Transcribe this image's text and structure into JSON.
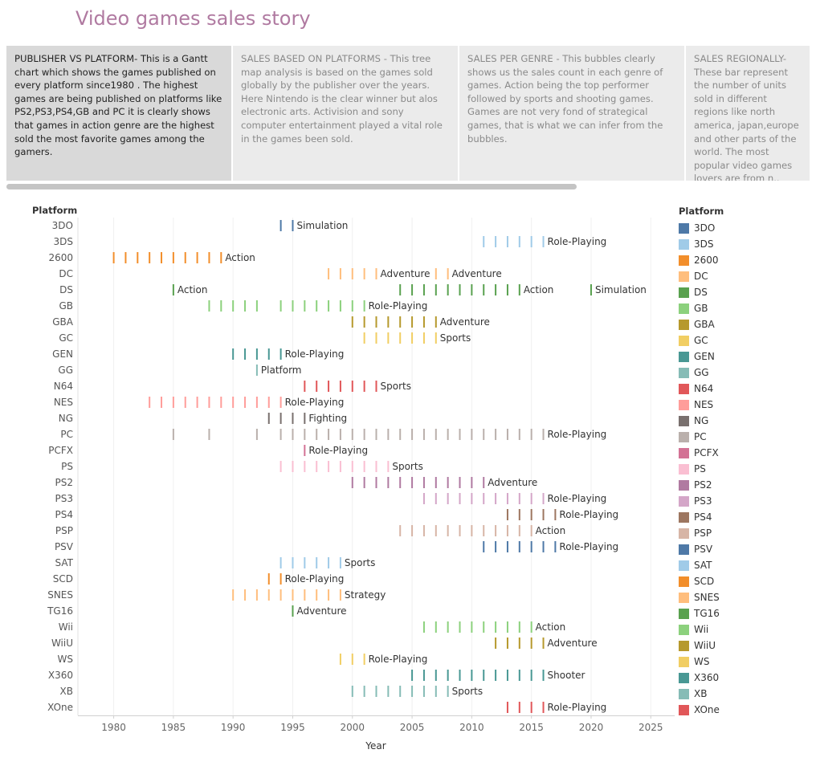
{
  "story_title": "Video games sales story",
  "story_points": [
    {
      "text": "PUBLISHER VS PLATFORM- This is a Gantt chart which  shows the games  published on every platform since1980 . The highest games are being published on platforms like PS2,PS3,PS4,GB and PC it is clearly shows that games in action genre are the highest sold the most favorite games among the gamers.",
      "active": true
    },
    {
      "text": "SALES BASED ON PLATFORMS - This tree map analysis is based on the games sold globally by the publisher over the years. Here Nintendo is the clear winner but alos electronic arts. Activision and sony computer entertainment played  a  vital role in the games been sold.",
      "active": false
    },
    {
      "text": "SALES PER GENRE - This bubbles clearly shows us the sales count in each genre of games. Action being the top performer followed by sports and shooting games. Games are not very fond of strategical games, that is what we can infer from the bubbles.",
      "active": false
    },
    {
      "text": "SALES REGIONALLY- These bar represent the number of units sold in different regions like north america, japan,europe and other parts of the world. The most popular video games lovers are from n..",
      "active": false
    }
  ],
  "legend_title": "Platform",
  "chart_data": {
    "type": "gantt",
    "xlabel": "Year",
    "ylabel": "Platform",
    "xlim": [
      1977,
      2027
    ],
    "xticks": [
      1980,
      1985,
      1990,
      1995,
      2000,
      2005,
      2010,
      2015,
      2020,
      2025
    ],
    "rows": [
      {
        "platform": "3DO",
        "color": "#4e79a7",
        "years": [
          1994,
          1995
        ],
        "labels": [
          {
            "year": 1995,
            "text": "Simulation"
          }
        ]
      },
      {
        "platform": "3DS",
        "color": "#a0cbe8",
        "years": [
          2011,
          2012,
          2013,
          2014,
          2015,
          2016
        ],
        "labels": [
          {
            "year": 2016,
            "text": "Role-Playing"
          }
        ]
      },
      {
        "platform": "2600",
        "color": "#f28e2b",
        "years": [
          1980,
          1981,
          1982,
          1983,
          1984,
          1985,
          1986,
          1987,
          1988,
          1989
        ],
        "labels": [
          {
            "year": 1989,
            "text": "Action"
          }
        ]
      },
      {
        "platform": "DC",
        "color": "#ffbe7d",
        "years": [
          1998,
          1999,
          2000,
          2001,
          2002,
          2007,
          2008
        ],
        "labels": [
          {
            "year": 2002,
            "text": "Adventure"
          },
          {
            "year": 2008,
            "text": "Adventure"
          }
        ]
      },
      {
        "platform": "DS",
        "color": "#59a14f",
        "years": [
          1985,
          2004,
          2005,
          2006,
          2007,
          2008,
          2009,
          2010,
          2011,
          2012,
          2013,
          2014,
          2020
        ],
        "labels": [
          {
            "year": 1985,
            "text": "Action"
          },
          {
            "year": 2014,
            "text": "Action"
          },
          {
            "year": 2020,
            "text": "Simulation"
          }
        ]
      },
      {
        "platform": "GB",
        "color": "#8cd17d",
        "years": [
          1988,
          1989,
          1990,
          1991,
          1992,
          1994,
          1995,
          1996,
          1997,
          1998,
          1999,
          2000,
          2001
        ],
        "labels": [
          {
            "year": 2001,
            "text": "Role-Playing"
          }
        ]
      },
      {
        "platform": "GBA",
        "color": "#b6992d",
        "years": [
          2000,
          2001,
          2002,
          2003,
          2004,
          2005,
          2006,
          2007
        ],
        "labels": [
          {
            "year": 2007,
            "text": "Adventure"
          }
        ]
      },
      {
        "platform": "GC",
        "color": "#f1ce63",
        "years": [
          2001,
          2002,
          2003,
          2004,
          2005,
          2006,
          2007
        ],
        "labels": [
          {
            "year": 2007,
            "text": "Sports"
          }
        ]
      },
      {
        "platform": "GEN",
        "color": "#499894",
        "years": [
          1990,
          1991,
          1992,
          1993,
          1994
        ],
        "labels": [
          {
            "year": 1994,
            "text": "Role-Playing"
          }
        ]
      },
      {
        "platform": "GG",
        "color": "#86bcb6",
        "years": [
          1992
        ],
        "labels": [
          {
            "year": 1992,
            "text": "Platform"
          }
        ]
      },
      {
        "platform": "N64",
        "color": "#e15759",
        "years": [
          1996,
          1997,
          1998,
          1999,
          2000,
          2001,
          2002
        ],
        "labels": [
          {
            "year": 2002,
            "text": "Sports"
          }
        ]
      },
      {
        "platform": "NES",
        "color": "#ff9d9a",
        "years": [
          1983,
          1984,
          1985,
          1986,
          1987,
          1988,
          1989,
          1990,
          1991,
          1992,
          1993,
          1994
        ],
        "labels": [
          {
            "year": 1994,
            "text": "Role-Playing"
          }
        ]
      },
      {
        "platform": "NG",
        "color": "#79706e",
        "years": [
          1993,
          1994,
          1995,
          1996
        ],
        "labels": [
          {
            "year": 1996,
            "text": "Fighting"
          }
        ]
      },
      {
        "platform": "PC",
        "color": "#bab0ac",
        "years": [
          1985,
          1988,
          1992,
          1994,
          1995,
          1996,
          1997,
          1998,
          1999,
          2000,
          2001,
          2002,
          2003,
          2004,
          2005,
          2006,
          2007,
          2008,
          2009,
          2010,
          2011,
          2012,
          2013,
          2014,
          2015,
          2016
        ],
        "labels": [
          {
            "year": 2016,
            "text": "Role-Playing"
          }
        ]
      },
      {
        "platform": "PCFX",
        "color": "#d37295",
        "years": [
          1996
        ],
        "labels": [
          {
            "year": 1996,
            "text": "Role-Playing"
          }
        ]
      },
      {
        "platform": "PS",
        "color": "#fabfd2",
        "years": [
          1994,
          1995,
          1996,
          1997,
          1998,
          1999,
          2000,
          2001,
          2002,
          2003
        ],
        "labels": [
          {
            "year": 2003,
            "text": "Sports"
          }
        ]
      },
      {
        "platform": "PS2",
        "color": "#b07aa1",
        "years": [
          2000,
          2001,
          2002,
          2003,
          2004,
          2005,
          2006,
          2007,
          2008,
          2009,
          2010,
          2011
        ],
        "labels": [
          {
            "year": 2011,
            "text": "Adventure"
          }
        ]
      },
      {
        "platform": "PS3",
        "color": "#d4a6c8",
        "years": [
          2006,
          2007,
          2008,
          2009,
          2010,
          2011,
          2012,
          2013,
          2014,
          2015,
          2016
        ],
        "labels": [
          {
            "year": 2016,
            "text": "Role-Playing"
          }
        ]
      },
      {
        "platform": "PS4",
        "color": "#9d7660",
        "years": [
          2013,
          2014,
          2015,
          2016,
          2017
        ],
        "labels": [
          {
            "year": 2017,
            "text": "Role-Playing"
          }
        ]
      },
      {
        "platform": "PSP",
        "color": "#d7b5a6",
        "years": [
          2004,
          2005,
          2006,
          2007,
          2008,
          2009,
          2010,
          2011,
          2012,
          2013,
          2014,
          2015
        ],
        "labels": [
          {
            "year": 2015,
            "text": "Action"
          }
        ]
      },
      {
        "platform": "PSV",
        "color": "#4e79a7",
        "years": [
          2011,
          2012,
          2013,
          2014,
          2015,
          2016,
          2017
        ],
        "labels": [
          {
            "year": 2017,
            "text": "Role-Playing"
          }
        ]
      },
      {
        "platform": "SAT",
        "color": "#a0cbe8",
        "years": [
          1994,
          1995,
          1996,
          1997,
          1998,
          1999
        ],
        "labels": [
          {
            "year": 1999,
            "text": "Sports"
          }
        ]
      },
      {
        "platform": "SCD",
        "color": "#f28e2b",
        "years": [
          1993,
          1994
        ],
        "labels": [
          {
            "year": 1994,
            "text": "Role-Playing"
          }
        ]
      },
      {
        "platform": "SNES",
        "color": "#ffbe7d",
        "years": [
          1990,
          1991,
          1992,
          1993,
          1994,
          1995,
          1996,
          1997,
          1998,
          1999
        ],
        "labels": [
          {
            "year": 1999,
            "text": "Strategy"
          }
        ]
      },
      {
        "platform": "TG16",
        "color": "#59a14f",
        "years": [
          1995
        ],
        "labels": [
          {
            "year": 1995,
            "text": "Adventure"
          }
        ]
      },
      {
        "platform": "Wii",
        "color": "#8cd17d",
        "years": [
          2006,
          2007,
          2008,
          2009,
          2010,
          2011,
          2012,
          2013,
          2014,
          2015
        ],
        "labels": [
          {
            "year": 2015,
            "text": "Action"
          }
        ]
      },
      {
        "platform": "WiiU",
        "color": "#b6992d",
        "years": [
          2012,
          2013,
          2014,
          2015,
          2016
        ],
        "labels": [
          {
            "year": 2016,
            "text": "Adventure"
          }
        ]
      },
      {
        "platform": "WS",
        "color": "#f1ce63",
        "years": [
          1999,
          2000,
          2001
        ],
        "labels": [
          {
            "year": 2001,
            "text": "Role-Playing"
          }
        ]
      },
      {
        "platform": "X360",
        "color": "#499894",
        "years": [
          2005,
          2006,
          2007,
          2008,
          2009,
          2010,
          2011,
          2012,
          2013,
          2014,
          2015,
          2016
        ],
        "labels": [
          {
            "year": 2016,
            "text": "Shooter"
          }
        ]
      },
      {
        "platform": "XB",
        "color": "#86bcb6",
        "years": [
          2000,
          2001,
          2002,
          2003,
          2004,
          2005,
          2006,
          2007,
          2008
        ],
        "labels": [
          {
            "year": 2008,
            "text": "Sports"
          }
        ]
      },
      {
        "platform": "XOne",
        "color": "#e15759",
        "years": [
          2013,
          2014,
          2015,
          2016
        ],
        "labels": [
          {
            "year": 2016,
            "text": "Role-Playing"
          }
        ]
      }
    ]
  }
}
